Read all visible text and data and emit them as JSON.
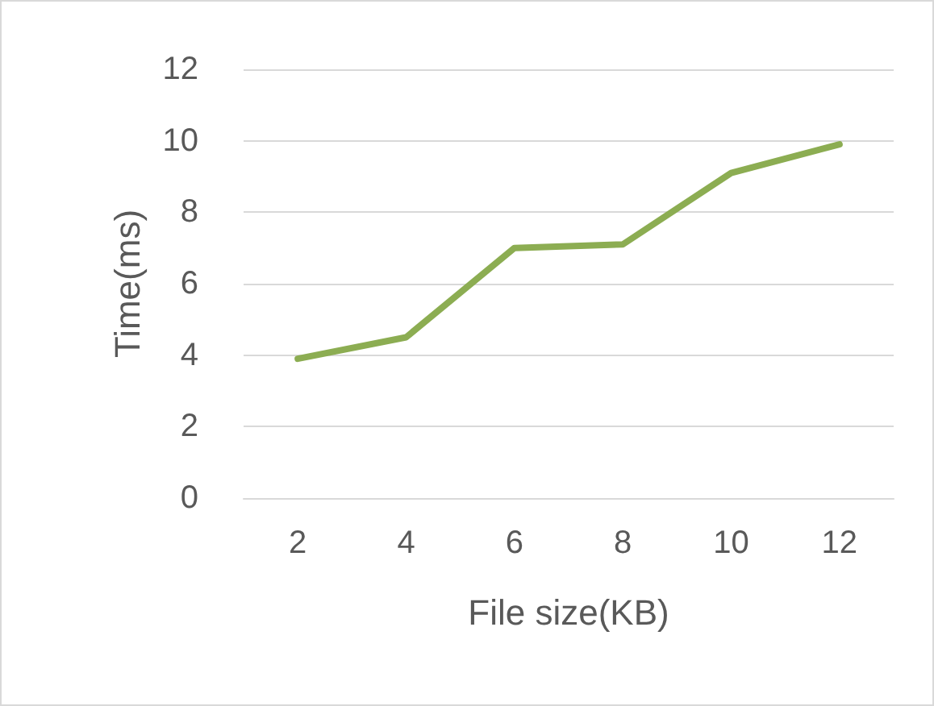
{
  "chart_data": {
    "type": "line",
    "xlabel": "File size(KB)",
    "ylabel": "Time(ms)",
    "categories": [
      "2",
      "4",
      "6",
      "8",
      "10",
      "12"
    ],
    "series": [
      {
        "color": "#8cad52",
        "values": [
          3.9,
          4.5,
          7.0,
          7.1,
          9.1,
          9.9
        ]
      }
    ],
    "ylim": [
      0,
      12
    ],
    "yticks": [
      0,
      2,
      4,
      6,
      8,
      10,
      12
    ],
    "grid": "y",
    "marker": "none",
    "line_style": "solid"
  }
}
